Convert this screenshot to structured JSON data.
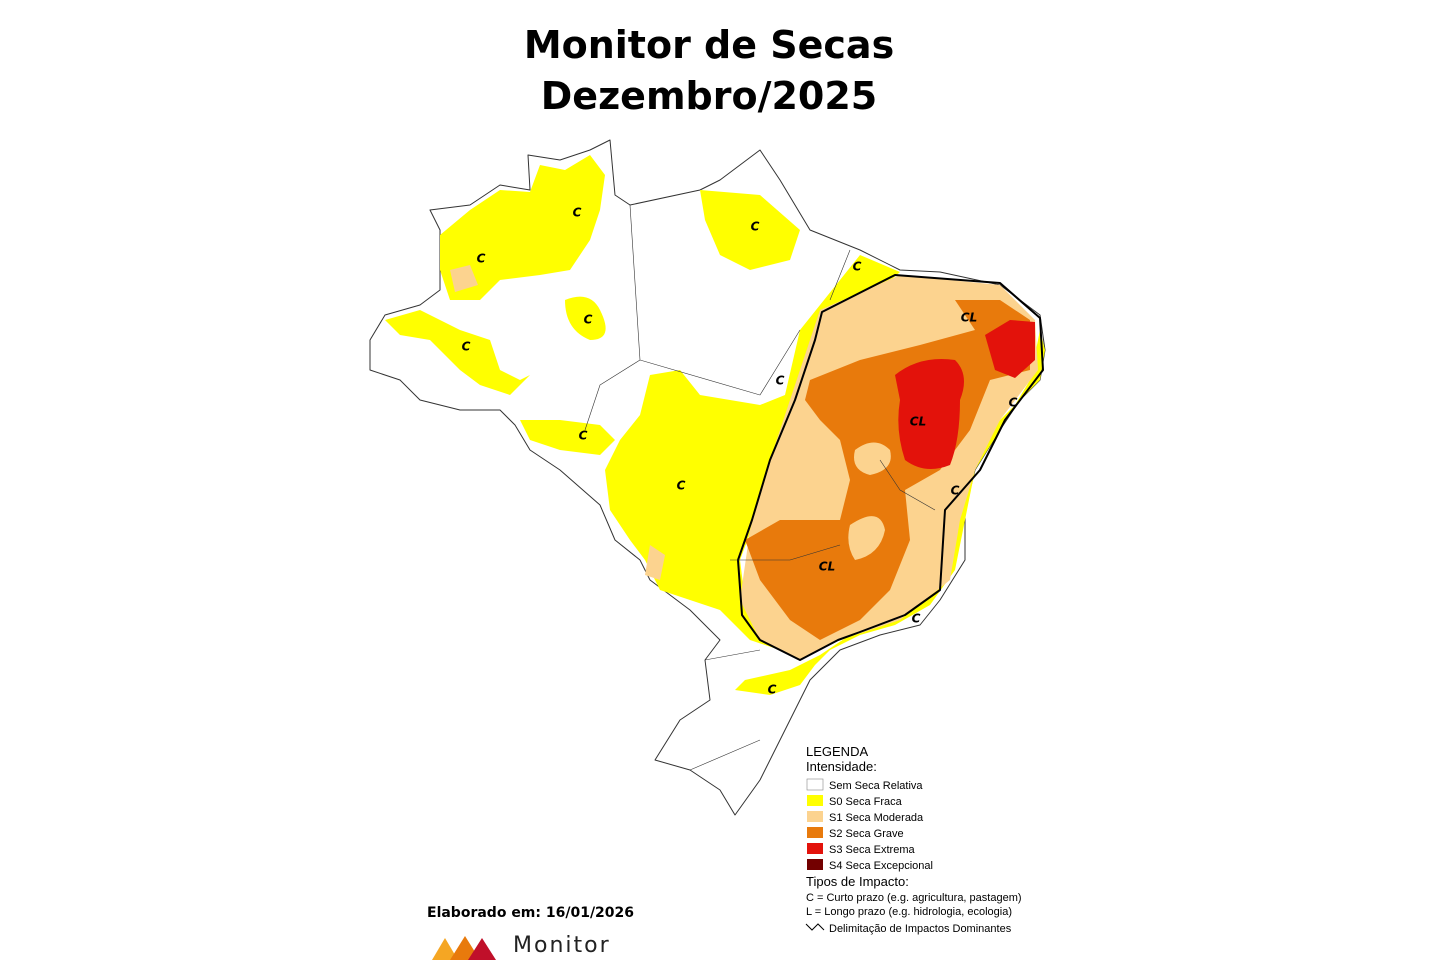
{
  "header": {
    "title": [
      "Monitor de Secas",
      "Dezembro/2025"
    ]
  },
  "map_labels": [
    "C",
    "C",
    "C",
    "C",
    "C",
    "C",
    "C",
    "C",
    "C",
    "C",
    "C",
    "C",
    "C",
    "CL",
    "CL",
    "CL"
  ],
  "legend": {
    "title": "LEGENDA",
    "intensity_title": "Intensidade:",
    "items": [
      {
        "label": "Sem Seca Relativa",
        "color": "#ffffff"
      },
      {
        "label": "S0 Seca Fraca",
        "color": "#ffff00"
      },
      {
        "label": "S1 Seca Moderada",
        "color": "#fcd38f"
      },
      {
        "label": "S2 Seca Grave",
        "color": "#e87a0c"
      },
      {
        "label": "S3 Seca Extrema",
        "color": "#e3120b"
      },
      {
        "label": "S4 Seca Excepcional",
        "color": "#730000"
      }
    ],
    "impact_title": "Tipos de Impacto:",
    "impact_items": [
      "C = Curto prazo (e.g. agricultura, pastagem)",
      "L = Longo prazo (e.g. hidrologia, ecologia)",
      "Delimitação de Impactos Dominantes"
    ]
  },
  "footer": {
    "date": "Elaborado em: 16/01/2026",
    "logo_text": "Monitor"
  }
}
